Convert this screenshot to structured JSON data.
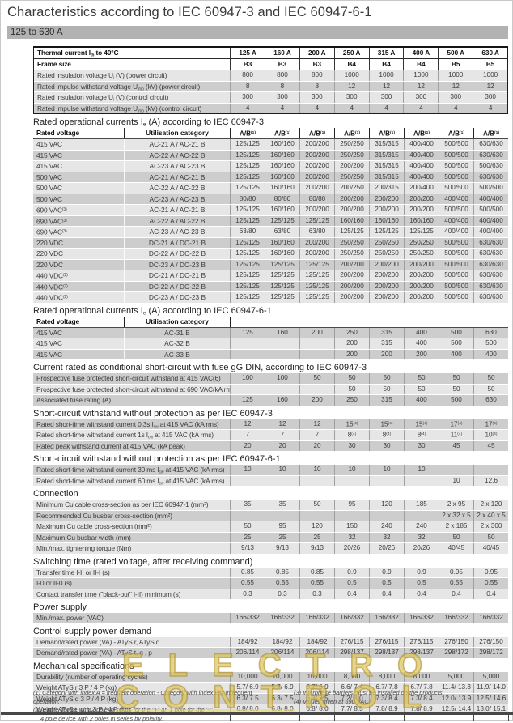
{
  "page": {
    "title": "Characteristics according to IEC 60947-3 and IEC 60947-6-1",
    "subtitle": "125 to 630 A"
  },
  "columns": {
    "thermal_label": "Thermal current I~th~ to 40°C",
    "ratings": [
      "125 A",
      "160 A",
      "200 A",
      "250 A",
      "315 A",
      "400 A",
      "500 A",
      "630 A"
    ],
    "frame_label": "Frame size",
    "frames": [
      "B3",
      "B3",
      "B3",
      "B4",
      "B4",
      "B4",
      "B5",
      "B5"
    ]
  },
  "top_rows": [
    {
      "label": "Rated insulation voltage U~i~ (V) (power circuit)",
      "values": [
        "800",
        "800",
        "800",
        "1000",
        "1000",
        "1000",
        "1000",
        "1000"
      ]
    },
    {
      "label": "Rated impulse withstand voltage U~imp~ (kV) (power circuit)",
      "values": [
        "8",
        "8",
        "8",
        "12",
        "12",
        "12",
        "12",
        "12"
      ]
    },
    {
      "label": "Rated insulation voltage U~i~ (V) (control circuit)",
      "values": [
        "300",
        "300",
        "300",
        "300",
        "300",
        "300",
        "300",
        "300"
      ]
    },
    {
      "label": "Rated impulse withstand voltage U~imp~ (kV) (control circuit)",
      "values": [
        "4",
        "4",
        "4",
        "4",
        "4",
        "4",
        "4",
        "4"
      ]
    }
  ],
  "sections": [
    {
      "title": "Rated operational currents I~e~ (A) according to IEC 60947-3",
      "start_dark": false,
      "subheader": {
        "col1": "Rated voltage",
        "col2": "Utilisation category",
        "values": [
          "A/B^(1)^",
          "A/B^(1)^",
          "A/B^(1)^",
          "A/B^(1)^",
          "A/B^(1)^",
          "A/B^(1)^",
          "A/B^(1)^",
          "A/B^(1)^"
        ]
      },
      "rows": [
        {
          "label": "415 VAC",
          "cat": "AC-21 A / AC-21 B",
          "values": [
            "125/125",
            "160/160",
            "200/200",
            "250/250",
            "315/315",
            "400/400",
            "500/500",
            "630/630"
          ]
        },
        {
          "label": "415 VAC",
          "cat": "AC-22 A / AC-22 B",
          "values": [
            "125/125",
            "160/160",
            "200/200",
            "250/250",
            "315/315",
            "400/400",
            "500/500",
            "630/630"
          ]
        },
        {
          "label": "415 VAC",
          "cat": "AC-23 A / AC-23 B",
          "values": [
            "125/125",
            "160/160",
            "200/200",
            "200/200",
            "315/315",
            "400/400",
            "500/500",
            "500/630"
          ]
        },
        {
          "label": "500 VAC",
          "cat": "AC-21 A / AC-21 B",
          "values": [
            "125/125",
            "160/160",
            "200/200",
            "250/250",
            "315/315",
            "400/400",
            "500/500",
            "630/630"
          ]
        },
        {
          "label": "500 VAC",
          "cat": "AC-22 A / AC-22 B",
          "values": [
            "125/125",
            "160/160",
            "200/200",
            "200/250",
            "200/315",
            "200/400",
            "500/500",
            "500/500"
          ]
        },
        {
          "label": "500 VAC",
          "cat": "AC-23 A / AC-23 B",
          "values": [
            "80/80",
            "80/80",
            "80/80",
            "200/200",
            "200/200",
            "200/200",
            "400/400",
            "400/400"
          ]
        },
        {
          "label": "690 VAC^(3)^",
          "cat": "AC-21 A / AC-21 B",
          "values": [
            "125/125",
            "160/160",
            "200/200",
            "200/200",
            "200/200",
            "200/200",
            "500/500",
            "500/500"
          ]
        },
        {
          "label": "690 VAC^(3)^",
          "cat": "AC-22 A / AC-22 B",
          "values": [
            "125/125",
            "125/125",
            "125/125",
            "160/160",
            "160/160",
            "160/160",
            "400/400",
            "400/400"
          ]
        },
        {
          "label": "690 VAC^(3)^",
          "cat": "AC-23 A / AC-23 B",
          "values": [
            "63/80",
            "63/80",
            "63/80",
            "125/125",
            "125/125",
            "125/125",
            "400/400",
            "400/400"
          ]
        },
        {
          "label": "220 VDC",
          "cat": "DC-21 A / DC-21 B",
          "values": [
            "125/125",
            "160/160",
            "200/200",
            "250/250",
            "250/250",
            "250/250",
            "500/500",
            "630/630"
          ]
        },
        {
          "label": "220 VDC",
          "cat": "DC-22 A / DC-22 B",
          "values": [
            "125/125",
            "160/160",
            "200/200",
            "250/250",
            "250/250",
            "250/250",
            "500/500",
            "630/630"
          ]
        },
        {
          "label": "220 VDC",
          "cat": "DC-23 A / DC-23 B",
          "values": [
            "125/125",
            "125/125",
            "125/125",
            "200/200",
            "200/200",
            "200/200",
            "500/500",
            "630/630"
          ]
        },
        {
          "label": "440 VDC^(2)^",
          "cat": "DC-21 A / DC-21 B",
          "values": [
            "125/125",
            "125/125",
            "125/125",
            "200/200",
            "200/200",
            "200/200",
            "500/500",
            "630/630"
          ]
        },
        {
          "label": "440 VDC^(2)^",
          "cat": "DC-22 A / DC-22 B",
          "values": [
            "125/125",
            "125/125",
            "125/125",
            "200/200",
            "200/200",
            "200/200",
            "500/500",
            "630/630"
          ]
        },
        {
          "label": "440 VDC^(2)^",
          "cat": "DC-23 A / DC-23 B",
          "values": [
            "125/125",
            "125/125",
            "125/125",
            "200/200",
            "200/200",
            "200/200",
            "500/500",
            "630/630"
          ]
        }
      ]
    },
    {
      "title": "Rated operational currents I~e~ (A) according to IEC 60947-6-1",
      "start_dark": true,
      "subheader": {
        "col1": "Rated voltage",
        "col2": "Utilisation category",
        "values": [
          "",
          "",
          "",
          "",
          "",
          "",
          "",
          ""
        ]
      },
      "rows": [
        {
          "label": "415 VAC",
          "cat": "AC-31 B",
          "values": [
            "125",
            "160",
            "200",
            "250",
            "315",
            "400",
            "500",
            "630"
          ]
        },
        {
          "label": "415 VAC",
          "cat": "AC-32 B",
          "values": [
            "",
            "",
            "",
            "200",
            "315",
            "400",
            "500",
            "500"
          ]
        },
        {
          "label": "415 VAC",
          "cat": "AC-33 B",
          "values": [
            "",
            "",
            "",
            "200",
            "200",
            "200",
            "400",
            "400"
          ]
        }
      ]
    },
    {
      "title": "Current rated as conditional short-circuit with fuse gG DIN, according to IEC 60947-3",
      "start_dark": true,
      "rows": [
        {
          "label": "Prospective fuse protected short-circuit withstand at 415 VAC(6)",
          "values": [
            "100",
            "100",
            "50",
            "50",
            "50",
            "50",
            "50",
            "50"
          ]
        },
        {
          "label": "Prospective fuse protected short-circuit withstand at 690 VAC(kA rms)",
          "values": [
            "",
            "",
            "",
            "50",
            "50",
            "50",
            "50",
            "50"
          ]
        },
        {
          "label": "Associated fuse rating (A)",
          "values": [
            "125",
            "160",
            "200",
            "250",
            "315",
            "400",
            "500",
            "630"
          ]
        }
      ]
    },
    {
      "title": "Short-circuit withstand without protection as per IEC 60947-3",
      "start_dark": true,
      "rows": [
        {
          "label": "Rated short-time withstand current 0.3s I~cw~ at 415 VAC (kA rms)",
          "values": [
            "12",
            "12",
            "12",
            "15^(4)^",
            "15^(4)^",
            "15^(4)^",
            "17^(4)^",
            "17^(4)^"
          ]
        },
        {
          "label": "Rated short-time withstand current 1s I~cw~ at 415 VAC (kA rms)",
          "values": [
            "7",
            "7",
            "7",
            "8^(4)^",
            "8^(4)^",
            "8^(4)^",
            "11^(4)^",
            "10^(4)^"
          ]
        },
        {
          "label": "Rated peak withstand current at 415 VAC (kA peak)",
          "values": [
            "20",
            "20",
            "20",
            "30",
            "30",
            "30",
            "45",
            "45"
          ]
        }
      ]
    },
    {
      "title": "Short-circuit withstand without protection as per IEC 60947-6-1",
      "start_dark": true,
      "rows": [
        {
          "label": "Rated short-time withstand current 30 ms I~cw~ at 415 VAC (kA rms)",
          "values": [
            "10",
            "10",
            "10",
            "10",
            "10",
            "10",
            "",
            ""
          ]
        },
        {
          "label": "Rated short-time withstand current 60 ms I~cw~ at 415 VAC (kA rms)",
          "values": [
            "",
            "",
            "",
            "",
            "",
            "",
            "10",
            "12.6"
          ]
        }
      ]
    },
    {
      "title": "Connection",
      "start_dark": false,
      "rows": [
        {
          "label": "Minimum Cu cable cross-section as per IEC 60947-1 (mm²)",
          "values": [
            "35",
            "35",
            "50",
            "95",
            "120",
            "185",
            "2 x 95",
            "2 x 120"
          ]
        },
        {
          "label": "Recommended Cu busbar cross-section (mm²)",
          "values": [
            "",
            "",
            "",
            "",
            "",
            "",
            "2 x 32 x 5",
            "2 x 40 x 5"
          ]
        },
        {
          "label": "Maximum Cu cable cross-section (mm²)",
          "values": [
            "50",
            "95",
            "120",
            "150",
            "240",
            "240",
            "2 x 185",
            "2 x 300"
          ]
        },
        {
          "label": "Maximum Cu busbar width (mm)",
          "values": [
            "25",
            "25",
            "25",
            "32",
            "32",
            "32",
            "50",
            "50"
          ]
        },
        {
          "label": "Min./max. tightening torque (Nm)",
          "values": [
            "9/13",
            "9/13",
            "9/13",
            "20/26",
            "20/26",
            "20/26",
            "40/45",
            "40/45"
          ]
        }
      ]
    },
    {
      "title": "Switching time (rated voltage, after receiving command)",
      "start_dark": false,
      "rows": [
        {
          "label": "Transfer time I-II or II-I (s)",
          "values": [
            "0.85",
            "0.85",
            "0.85",
            "0.9",
            "0.9",
            "0.9",
            "0.95",
            "0.95"
          ]
        },
        {
          "label": "I-0 or II-0 (s)",
          "values": [
            "0.55",
            "0.55",
            "0.55",
            "0.5",
            "0.5",
            "0.5",
            "0.55",
            "0.55"
          ]
        },
        {
          "label": "Contact transfer time (\"black-out\" I-II) minimum (s)",
          "values": [
            "0.3",
            "0.3",
            "0.3",
            "0.4",
            "0.4",
            "0.4",
            "0.4",
            "0.4"
          ]
        }
      ]
    },
    {
      "title": "Power supply",
      "start_dark": true,
      "rows": [
        {
          "label": "Min./max. power (VAC)",
          "values": [
            "166/332",
            "166/332",
            "166/332",
            "166/332",
            "166/332",
            "166/332",
            "166/332",
            "166/332"
          ]
        }
      ]
    },
    {
      "title": "Control supply power demand",
      "start_dark": false,
      "rows": [
        {
          "label": "Demand/rated power (VA) - ATyS r, ATyS d",
          "values": [
            "184/92",
            "184/92",
            "184/92",
            "276/115",
            "276/115",
            "276/115",
            "276/150",
            "276/150"
          ]
        },
        {
          "label": "Demand/rated power (VA) - ATyS t, g , p",
          "values": [
            "206/114",
            "206/114",
            "206/114",
            "298/137",
            "298/137",
            "298/137",
            "298/172",
            "298/172"
          ]
        }
      ]
    },
    {
      "title": "Mechanical specifications",
      "start_dark": true,
      "rows": [
        {
          "label": "Durability (number of operating cycles)",
          "values": [
            "10,000",
            "10,000",
            "10,000",
            "8,000",
            "8,000",
            "8,000",
            "5,000",
            "5,000"
          ]
        },
        {
          "label": "Weight ATyS r 3 P / 4 P (kg)",
          "values": [
            "5.7/ 6.9",
            "5.7/ 6.9",
            "5.7/ 6.9",
            "6.6/ 7.4",
            "6.7/ 7.8",
            "6.7/ 7.8",
            "11.4/ 13.3",
            "11.9/ 14.0"
          ]
        },
        {
          "label": "Weight ATyS d 3 P / 4 P (kg)",
          "values": [
            "6.3/ 7.5",
            "6.3/ 7.5",
            "6.3/ 7.5",
            "7.2/ 8.0",
            "7.3/ 8.4",
            "7.3/ 8.4",
            "12.0/ 13.9",
            "12.5/ 14.6"
          ]
        },
        {
          "label": "Weight ATyS t, g, p 3 P / 4 P (kg)",
          "values": [
            "6.8/ 8.0",
            "6.8/ 8.0",
            "6.8/ 8.0",
            "7.7/ 8.5",
            "7.8/ 8.9",
            "7.8/ 8.9",
            "12.5/ 14.4",
            "13.0/ 15.1"
          ]
        }
      ]
    }
  ],
  "footnotes": {
    "left": [
      "(1) Category with index A = frequent operation - Category with index B = infrequent operation.",
      "(2) 3 pole device with 2 pole in series for the \"+\" an 1 pole for the \"-\".",
      "4 pole device with 2 poles in series by polarity."
    ],
    "right": [
      "(3) Interphase barriers must be installed on the products.",
      "(4) Values given at 690 VAC."
    ]
  },
  "watermark": {
    "line1": "ELECTRO",
    "line2": "CONTROL",
    "color": "#eedb6e"
  }
}
